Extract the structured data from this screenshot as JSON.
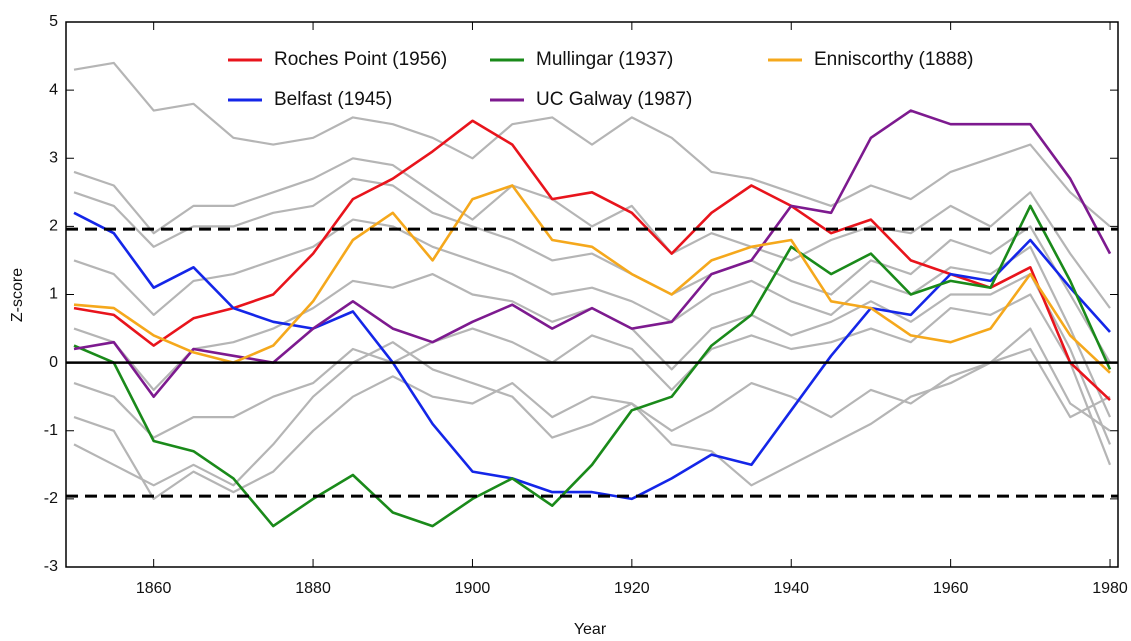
{
  "chart_data": {
    "type": "line",
    "xlabel": "Year",
    "ylabel": "Z-score",
    "x": [
      1850,
      1855,
      1860,
      1865,
      1870,
      1875,
      1880,
      1885,
      1890,
      1895,
      1900,
      1905,
      1910,
      1915,
      1920,
      1925,
      1930,
      1935,
      1940,
      1945,
      1950,
      1955,
      1960,
      1965,
      1970,
      1975,
      1980
    ],
    "xlim": [
      1849,
      1981
    ],
    "xticks": [
      1860,
      1880,
      1900,
      1920,
      1940,
      1960,
      1980
    ],
    "ylim": [
      -3,
      5
    ],
    "yticks": [
      -3,
      -2,
      -1,
      0,
      1,
      2,
      3,
      4,
      5
    ],
    "legend": "upper center",
    "reference_lines": [
      {
        "value": 1.96,
        "dashed": true
      },
      {
        "value": -1.96,
        "dashed": true
      },
      {
        "value": 0,
        "dashed": false
      }
    ],
    "series": [
      {
        "color": "#b5b5b5",
        "values": [
          4.3,
          4.4,
          3.7,
          3.8,
          3.3,
          3.2,
          3.3,
          3.6,
          3.5,
          3.3,
          3.0,
          3.5,
          3.6,
          3.2,
          3.6,
          3.3,
          2.8,
          2.7,
          2.5,
          2.3,
          2.6,
          2.4,
          2.8,
          3.0,
          3.2,
          2.5,
          2.0
        ]
      },
      {
        "color": "#b5b5b5",
        "values": [
          2.8,
          2.6,
          1.9,
          2.3,
          2.3,
          2.5,
          2.7,
          3.0,
          2.9,
          2.5,
          2.1,
          2.6,
          2.4,
          2.0,
          2.3,
          1.6,
          1.9,
          1.7,
          1.5,
          1.8,
          2.0,
          1.9,
          2.3,
          2.0,
          2.5,
          1.6,
          0.8
        ]
      },
      {
        "color": "#b5b5b5",
        "values": [
          2.5,
          2.3,
          1.7,
          2.0,
          2.0,
          2.2,
          2.3,
          2.7,
          2.6,
          2.2,
          2.0,
          1.8,
          1.5,
          1.6,
          1.3,
          1.0,
          1.3,
          1.5,
          1.2,
          1.0,
          1.5,
          1.3,
          1.8,
          1.6,
          2.0,
          1.0,
          0.0
        ]
      },
      {
        "color": "#b5b5b5",
        "values": [
          1.5,
          1.3,
          0.7,
          1.2,
          1.3,
          1.5,
          1.7,
          2.1,
          2.0,
          1.7,
          1.5,
          1.3,
          1.0,
          1.1,
          0.9,
          0.6,
          1.0,
          1.2,
          0.9,
          0.7,
          1.2,
          1.0,
          1.4,
          1.3,
          1.7,
          0.5,
          -0.8
        ]
      },
      {
        "color": "#b5b5b5",
        "values": [
          0.5,
          0.3,
          -0.4,
          0.2,
          0.3,
          0.5,
          0.8,
          1.2,
          1.1,
          1.3,
          1.0,
          0.9,
          0.6,
          0.8,
          0.5,
          -0.1,
          0.5,
          0.7,
          0.4,
          0.6,
          0.9,
          0.6,
          1.0,
          1.0,
          1.3,
          0.2,
          -1.2
        ]
      },
      {
        "color": "#b5b5b5",
        "values": [
          -0.3,
          -0.5,
          -1.1,
          -0.8,
          -0.8,
          -0.5,
          -0.3,
          0.2,
          0.0,
          0.3,
          0.5,
          0.3,
          0.0,
          0.4,
          0.2,
          -0.4,
          0.2,
          0.4,
          0.2,
          0.3,
          0.5,
          0.3,
          0.8,
          0.7,
          1.0,
          0.0,
          -1.5
        ]
      },
      {
        "color": "#b5b5b5",
        "values": [
          -0.8,
          -1.0,
          -2.0,
          -1.6,
          -1.9,
          -1.6,
          -1.0,
          -0.5,
          -0.2,
          -0.5,
          -0.6,
          -0.3,
          -0.8,
          -0.5,
          -0.6,
          -1.0,
          -0.7,
          -0.3,
          -0.5,
          -0.8,
          -0.4,
          -0.6,
          -0.2,
          0.0,
          0.5,
          -0.6,
          -1.0
        ]
      },
      {
        "color": "#b5b5b5",
        "values": [
          -1.2,
          -1.5,
          -1.8,
          -1.5,
          -1.8,
          -1.2,
          -0.5,
          0.0,
          0.3,
          -0.1,
          -0.3,
          -0.5,
          -1.1,
          -0.9,
          -0.6,
          -1.2,
          -1.3,
          -1.8,
          -1.5,
          -1.2,
          -0.9,
          -0.5,
          -0.3,
          0.0,
          0.2,
          -0.8,
          -0.5
        ]
      },
      {
        "name": "Roches Point (1956)",
        "color": "#e8141c",
        "values": [
          0.8,
          0.7,
          0.25,
          0.65,
          0.8,
          1.0,
          1.6,
          2.4,
          2.7,
          3.1,
          3.55,
          3.2,
          2.4,
          2.5,
          2.2,
          1.6,
          2.2,
          2.6,
          2.3,
          1.9,
          2.1,
          1.5,
          1.3,
          1.1,
          1.4,
          0.0,
          -0.55
        ]
      },
      {
        "name": "Belfast (1945)",
        "color": "#1426e8",
        "values": [
          2.2,
          1.9,
          1.1,
          1.4,
          0.8,
          0.6,
          0.5,
          0.75,
          0.0,
          -0.9,
          -1.6,
          -1.7,
          -1.9,
          -1.9,
          -2.0,
          -1.7,
          -1.35,
          -1.5,
          -0.7,
          0.1,
          0.8,
          0.7,
          1.3,
          1.2,
          1.8,
          1.1,
          0.45
        ]
      },
      {
        "name": "Mullingar (1937)",
        "color": "#1a8a1a",
        "values": [
          0.25,
          0.0,
          -1.15,
          -1.3,
          -1.7,
          -2.4,
          -2.0,
          -1.65,
          -2.2,
          -2.4,
          -2.0,
          -1.7,
          -2.1,
          -1.5,
          -0.7,
          -0.5,
          0.25,
          0.7,
          1.7,
          1.3,
          1.6,
          1.0,
          1.2,
          1.1,
          2.3,
          1.2,
          -0.1
        ]
      },
      {
        "name": "UC Galway (1987)",
        "color": "#7d1a8f",
        "values": [
          0.2,
          0.3,
          -0.5,
          0.2,
          0.1,
          0.0,
          0.5,
          0.9,
          0.5,
          0.3,
          0.6,
          0.85,
          0.5,
          0.8,
          0.5,
          0.6,
          1.3,
          1.5,
          2.3,
          2.2,
          3.3,
          3.7,
          3.5,
          3.5,
          3.5,
          2.7,
          1.6
        ]
      },
      {
        "name": "Enniscorthy (1888)",
        "color": "#f5a81c",
        "values": [
          0.85,
          0.8,
          0.4,
          0.15,
          0.0,
          0.25,
          0.9,
          1.8,
          2.2,
          1.5,
          2.4,
          2.6,
          1.8,
          1.7,
          1.3,
          1.0,
          1.5,
          1.7,
          1.8,
          0.9,
          0.8,
          0.4,
          0.3,
          0.5,
          1.3,
          0.4,
          -0.15
        ]
      }
    ]
  }
}
